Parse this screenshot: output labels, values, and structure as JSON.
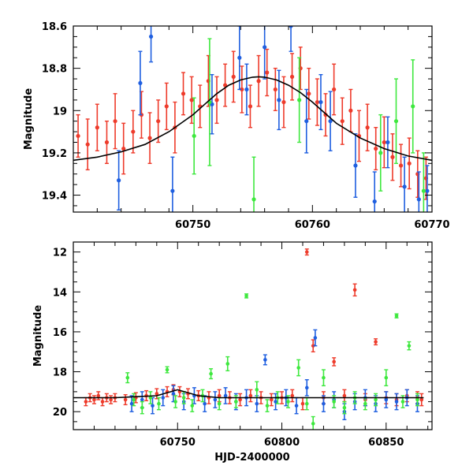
{
  "chart_data": [
    {
      "type": "scatter",
      "panel": "top",
      "xlabel": "",
      "ylabel": "Magnitude",
      "xlim": [
        60740,
        60770
      ],
      "ylim": [
        19.48,
        18.6
      ],
      "y_inverted": true,
      "xticks": [
        60750,
        60760,
        60770
      ],
      "xtick_labels": [
        "60750",
        "60760",
        "60770"
      ],
      "yticks": [
        18.6,
        18.8,
        19.0,
        19.2,
        19.4
      ],
      "ytick_labels": [
        "18.6",
        "18.8",
        "19",
        "19.2",
        "19.4"
      ],
      "grid": false,
      "model_curve": {
        "color": "#000000",
        "x": [
          60740,
          60742,
          60744,
          60746,
          60748,
          60750,
          60751,
          60752,
          60753,
          60754,
          60755,
          60755.5,
          60756,
          60757,
          60758,
          60759,
          60760,
          60761,
          60762,
          60764,
          60766,
          60768,
          60770
        ],
        "y": [
          19.235,
          19.22,
          19.195,
          19.16,
          19.1,
          19.02,
          18.97,
          18.92,
          18.88,
          18.855,
          18.842,
          18.84,
          18.842,
          18.855,
          18.88,
          18.915,
          18.96,
          19.01,
          19.06,
          19.13,
          19.18,
          19.215,
          19.235
        ]
      },
      "series": [
        {
          "color": "#ee3b2b",
          "x": [
            60740.4,
            60741.2,
            60742.0,
            60742.8,
            60743.5,
            60744.2,
            60745.0,
            60745.7,
            60746.4,
            60747.1,
            60747.8,
            60748.5,
            60749.2,
            60749.9,
            60750.6,
            60751.3,
            60752.0,
            60752.7,
            60753.4,
            60754.1,
            60754.8,
            60755.5,
            60756.2,
            60756.9,
            60757.6,
            60758.3,
            60759.0,
            60759.7,
            60760.4,
            60761.1,
            60761.8,
            60762.5,
            60763.2,
            60763.9,
            60764.6,
            60765.3,
            60766.0,
            60766.7,
            60767.4,
            60768.1,
            60768.8,
            60769.5
          ],
          "y": [
            19.12,
            19.16,
            19.08,
            19.15,
            19.05,
            19.18,
            19.1,
            19.02,
            19.13,
            19.05,
            18.98,
            19.08,
            18.92,
            18.95,
            18.98,
            18.86,
            18.95,
            18.88,
            18.84,
            18.9,
            18.98,
            18.86,
            18.82,
            18.9,
            18.96,
            18.84,
            18.8,
            18.92,
            18.96,
            19.02,
            18.9,
            19.05,
            19.0,
            19.12,
            19.08,
            19.18,
            19.15,
            19.22,
            19.26,
            19.25,
            19.3,
            19.32
          ],
          "err": [
            0.1,
            0.12,
            0.11,
            0.1,
            0.13,
            0.12,
            0.1,
            0.11,
            0.12,
            0.1,
            0.11,
            0.12,
            0.1,
            0.11,
            0.1,
            0.12,
            0.11,
            0.1,
            0.12,
            0.11,
            0.1,
            0.12,
            0.11,
            0.1,
            0.12,
            0.11,
            0.1,
            0.12,
            0.11,
            0.1,
            0.12,
            0.11,
            0.1,
            0.12,
            0.11,
            0.1,
            0.12,
            0.11,
            0.1,
            0.12,
            0.11,
            0.1
          ]
        },
        {
          "color": "#1f5fe0",
          "x": [
            60743.8,
            60745.6,
            60746.5,
            60748.3,
            60751.6,
            60753.9,
            60754.5,
            60756.0,
            60757.2,
            60758.2,
            60759.5,
            60760.7,
            60761.5,
            60763.6,
            60765.2,
            60766.3,
            60767.7,
            60768.9,
            60769.6
          ],
          "y": [
            19.33,
            18.87,
            18.65,
            19.38,
            18.97,
            18.75,
            18.9,
            18.7,
            18.95,
            18.6,
            19.05,
            18.96,
            19.05,
            19.26,
            19.43,
            19.15,
            19.36,
            19.42,
            19.38
          ],
          "err": [
            0.14,
            0.15,
            0.12,
            0.16,
            0.14,
            0.15,
            0.12,
            0.15,
            0.14,
            0.12,
            0.15,
            0.13,
            0.14,
            0.15,
            0.14,
            0.12,
            0.14,
            0.13,
            0.12
          ]
        },
        {
          "color": "#3ee83e",
          "x": [
            60750.1,
            60751.4,
            60755.1,
            60758.9,
            60765.7,
            60767.0,
            60768.4,
            60769.3
          ],
          "y": [
            19.12,
            18.96,
            19.42,
            18.95,
            19.2,
            19.05,
            18.98,
            19.38
          ],
          "err": [
            0.18,
            0.3,
            0.2,
            0.2,
            0.18,
            0.2,
            0.22,
            0.18
          ]
        }
      ]
    },
    {
      "type": "scatter",
      "panel": "bottom",
      "xlabel": "HJD-2400000",
      "ylabel": "Magnitude",
      "xlim": [
        60700,
        60872
      ],
      "ylim": [
        20.9,
        11.5
      ],
      "y_inverted": true,
      "xticks": [
        60750,
        60800,
        60850
      ],
      "xtick_labels": [
        "60750",
        "60800",
        "60850"
      ],
      "yticks": [
        12,
        14,
        16,
        18,
        20
      ],
      "ytick_labels": [
        "12",
        "14",
        "16",
        "18",
        "20"
      ],
      "grid": false,
      "model_curve": {
        "color": "#000000",
        "x": [
          60700,
          60720,
          60730,
          60740,
          60750,
          60760,
          60770,
          60800,
          60868
        ],
        "y": [
          19.3,
          19.3,
          19.25,
          19.2,
          18.9,
          19.2,
          19.3,
          19.3,
          19.3
        ]
      },
      "series": [
        {
          "color": "#ee3b2b",
          "x": [
            60706,
            60708,
            60710,
            60712,
            60714,
            60716,
            60718,
            60720,
            60725,
            60730,
            60735,
            60740,
            60745,
            60748,
            60751,
            60755,
            60760,
            60765,
            60770,
            60775,
            60780,
            60785,
            60790,
            60795,
            60800,
            60805,
            60810,
            60812,
            60815,
            60820,
            60825,
            60830,
            60835,
            60840,
            60845,
            60850,
            60855,
            60860,
            60865,
            60867
          ],
          "y": [
            19.5,
            19.3,
            19.4,
            19.2,
            19.5,
            19.3,
            19.4,
            19.3,
            19.4,
            19.3,
            19.2,
            19.1,
            19.0,
            18.9,
            19.0,
            19.1,
            19.2,
            19.3,
            19.2,
            19.3,
            19.4,
            19.2,
            19.3,
            19.4,
            19.3,
            19.2,
            19.6,
            12.0,
            16.7,
            19.3,
            17.5,
            19.2,
            13.9,
            19.4,
            16.5,
            19.3,
            19.4,
            19.2,
            19.3,
            19.4
          ],
          "err": [
            0.2,
            0.2,
            0.2,
            0.2,
            0.2,
            0.2,
            0.2,
            0.2,
            0.25,
            0.25,
            0.25,
            0.25,
            0.25,
            0.25,
            0.25,
            0.25,
            0.25,
            0.3,
            0.3,
            0.3,
            0.3,
            0.3,
            0.3,
            0.3,
            0.3,
            0.3,
            0.3,
            0.15,
            0.3,
            0.3,
            0.2,
            0.3,
            0.3,
            0.3,
            0.15,
            0.3,
            0.3,
            0.3,
            0.3,
            0.3
          ]
        },
        {
          "color": "#1f5fe0",
          "x": [
            60728,
            60733,
            60738,
            60743,
            60748,
            60753,
            60758,
            60763,
            60768,
            60773,
            60778,
            60783,
            60788,
            60792,
            60797,
            60802,
            60807,
            60812,
            60816,
            60820,
            60825,
            60830,
            60835,
            60840,
            60845,
            60850,
            60855,
            60860,
            60865
          ],
          "y": [
            19.6,
            19.4,
            19.7,
            19.3,
            19.1,
            19.5,
            19.2,
            19.6,
            19.4,
            19.2,
            19.5,
            19.3,
            19.6,
            17.4,
            19.5,
            19.3,
            19.7,
            18.8,
            16.3,
            19.6,
            19.4,
            20.0,
            19.5,
            19.3,
            19.6,
            19.4,
            19.5,
            19.3,
            19.6
          ],
          "err": [
            0.4,
            0.4,
            0.4,
            0.4,
            0.4,
            0.4,
            0.4,
            0.4,
            0.4,
            0.4,
            0.4,
            0.4,
            0.4,
            0.25,
            0.4,
            0.4,
            0.4,
            0.4,
            0.4,
            0.4,
            0.4,
            0.4,
            0.4,
            0.4,
            0.4,
            0.4,
            0.4,
            0.4,
            0.4
          ]
        },
        {
          "color": "#3ee83e",
          "x": [
            60726,
            60729,
            60733,
            60737,
            60741,
            60745,
            60749,
            60753,
            60757,
            60762,
            60766,
            60770,
            60774,
            60778,
            60783,
            60788,
            60793,
            60798,
            60803,
            60808,
            60812,
            60815,
            60820,
            60825,
            60830,
            60835,
            60840,
            60845,
            60850,
            60855,
            60858,
            60861,
            60865
          ],
          "y": [
            18.3,
            19.4,
            19.8,
            19.3,
            19.6,
            17.9,
            19.5,
            19.3,
            19.7,
            19.2,
            18.1,
            19.6,
            17.6,
            19.5,
            14.2,
            18.9,
            19.7,
            19.3,
            19.5,
            17.8,
            19.6,
            20.6,
            18.3,
            19.5,
            19.8,
            19.3,
            19.6,
            19.4,
            18.3,
            15.2,
            19.5,
            16.7,
            19.4
          ],
          "err": [
            0.25,
            0.3,
            0.3,
            0.3,
            0.3,
            0.15,
            0.3,
            0.3,
            0.3,
            0.3,
            0.25,
            0.3,
            0.35,
            0.3,
            0.1,
            0.4,
            0.3,
            0.3,
            0.3,
            0.4,
            0.3,
            0.35,
            0.4,
            0.3,
            0.3,
            0.3,
            0.3,
            0.3,
            0.4,
            0.1,
            0.3,
            0.2,
            0.3
          ]
        }
      ]
    }
  ]
}
